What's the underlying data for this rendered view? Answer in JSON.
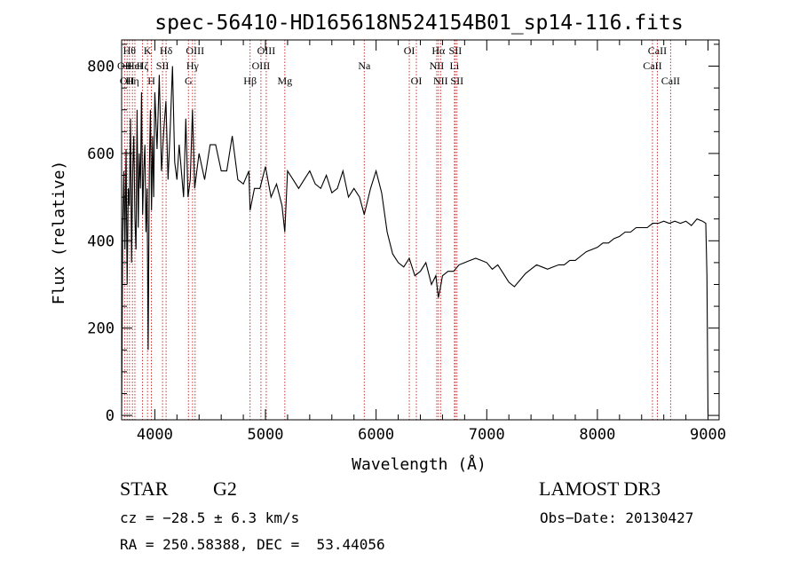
{
  "chart_data": {
    "type": "line",
    "title": "spec-56410-HD165618N524154B01_sp14-116.fits",
    "xlabel": "Wavelength (Å)",
    "ylabel": "Flux (relative)",
    "xlim": [
      3700,
      9100
    ],
    "ylim": [
      -10,
      860
    ],
    "xticks": [
      4000,
      5000,
      6000,
      7000,
      8000,
      9000
    ],
    "yticks": [
      0,
      200,
      400,
      600,
      800
    ],
    "grid": false,
    "series": [
      {
        "color": "#000000",
        "x": [
          3700,
          3710,
          3720,
          3730,
          3740,
          3750,
          3760,
          3770,
          3780,
          3790,
          3800,
          3810,
          3820,
          3830,
          3840,
          3850,
          3860,
          3870,
          3880,
          3890,
          3900,
          3910,
          3920,
          3930,
          3940,
          3950,
          3960,
          3970,
          3980,
          3990,
          4000,
          4020,
          4040,
          4060,
          4080,
          4100,
          4120,
          4140,
          4160,
          4180,
          4200,
          4220,
          4240,
          4260,
          4280,
          4300,
          4320,
          4340,
          4360,
          4380,
          4400,
          4450,
          4500,
          4550,
          4600,
          4650,
          4700,
          4750,
          4800,
          4850,
          4861,
          4900,
          4950,
          5000,
          5050,
          5100,
          5150,
          5175,
          5200,
          5250,
          5300,
          5350,
          5400,
          5450,
          5500,
          5550,
          5600,
          5650,
          5700,
          5750,
          5800,
          5850,
          5893,
          5950,
          6000,
          6050,
          6100,
          6150,
          6200,
          6250,
          6300,
          6350,
          6400,
          6450,
          6500,
          6540,
          6563,
          6580,
          6600,
          6650,
          6700,
          6750,
          6800,
          6850,
          6900,
          6950,
          7000,
          7050,
          7100,
          7150,
          7200,
          7250,
          7300,
          7350,
          7400,
          7450,
          7500,
          7550,
          7600,
          7650,
          7700,
          7750,
          7800,
          7850,
          7900,
          7950,
          8000,
          8050,
          8100,
          8150,
          8200,
          8250,
          8300,
          8350,
          8400,
          8450,
          8500,
          8550,
          8600,
          8650,
          8700,
          8750,
          8800,
          8850,
          8900,
          8950,
          8980,
          8990,
          9000
        ],
        "y": [
          0,
          420,
          560,
          380,
          610,
          300,
          520,
          480,
          680,
          350,
          560,
          640,
          450,
          380,
          700,
          430,
          600,
          520,
          740,
          460,
          560,
          620,
          420,
          520,
          150,
          560,
          700,
          470,
          640,
          500,
          740,
          610,
          780,
          560,
          650,
          720,
          540,
          660,
          800,
          580,
          540,
          620,
          560,
          500,
          680,
          500,
          540,
          700,
          520,
          560,
          600,
          540,
          620,
          620,
          560,
          560,
          640,
          540,
          530,
          560,
          470,
          520,
          520,
          570,
          500,
          530,
          480,
          420,
          560,
          540,
          520,
          540,
          560,
          530,
          520,
          550,
          510,
          520,
          560,
          500,
          520,
          500,
          460,
          520,
          560,
          510,
          420,
          370,
          350,
          340,
          360,
          320,
          330,
          350,
          300,
          320,
          270,
          290,
          320,
          330,
          330,
          345,
          350,
          355,
          360,
          355,
          350,
          335,
          345,
          325,
          305,
          295,
          310,
          325,
          335,
          345,
          340,
          335,
          340,
          345,
          345,
          355,
          355,
          365,
          375,
          380,
          385,
          395,
          395,
          405,
          410,
          420,
          420,
          430,
          430,
          430,
          440,
          440,
          445,
          440,
          445,
          440,
          445,
          435,
          450,
          445,
          440,
          320,
          0
        ]
      }
    ],
    "lines": [
      {
        "wavelength": 3727,
        "label": "OII",
        "row": 1
      },
      {
        "wavelength": 3750,
        "label": "OII",
        "row": 2
      },
      {
        "wavelength": 3771,
        "label": "Hθ",
        "row": 0
      },
      {
        "wavelength": 3798,
        "label": "Hη",
        "row": 2
      },
      {
        "wavelength": 3820,
        "label": "HeI",
        "row": 1
      },
      {
        "wavelength": 3889,
        "label": "Hζ",
        "row": 1
      },
      {
        "wavelength": 3934,
        "label": "K",
        "row": 0
      },
      {
        "wavelength": 3969,
        "label": "H",
        "row": 2
      },
      {
        "wavelength": 4070,
        "label": "SII",
        "row": 1
      },
      {
        "wavelength": 4102,
        "label": "Hδ",
        "row": 0
      },
      {
        "wavelength": 4304,
        "label": "G",
        "row": 2
      },
      {
        "wavelength": 4341,
        "label": "Hγ",
        "row": 1
      },
      {
        "wavelength": 4364,
        "label": "OIII",
        "row": 0
      },
      {
        "wavelength": 4861,
        "label": "Hβ",
        "row": 2
      },
      {
        "wavelength": 4959,
        "label": "OIII",
        "row": 1
      },
      {
        "wavelength": 5007,
        "label": "OIII",
        "row": 0
      },
      {
        "wavelength": 5175,
        "label": "Mg",
        "row": 2
      },
      {
        "wavelength": 5893,
        "label": "Na",
        "row": 1
      },
      {
        "wavelength": 6300,
        "label": "OI",
        "row": 0
      },
      {
        "wavelength": 6364,
        "label": "OI",
        "row": 2
      },
      {
        "wavelength": 6548,
        "label": "NII",
        "row": 1
      },
      {
        "wavelength": 6563,
        "label": "Hα",
        "row": 0
      },
      {
        "wavelength": 6583,
        "label": "NII",
        "row": 2
      },
      {
        "wavelength": 6708,
        "label": "Li",
        "row": 1
      },
      {
        "wavelength": 6716,
        "label": "SII",
        "row": 0
      },
      {
        "wavelength": 6731,
        "label": "SII",
        "row": 2
      },
      {
        "wavelength": 8498,
        "label": "CaII",
        "row": 1
      },
      {
        "wavelength": 8542,
        "label": "CaII",
        "row": 0
      },
      {
        "wavelength": 8662,
        "label": "CaII",
        "row": 2
      }
    ],
    "line_color": "#c83232"
  },
  "info": {
    "object_class": "STAR",
    "subclass": "G2",
    "survey": "LAMOST DR3",
    "cz": "cz = −28.5 ± 6.3 km/s",
    "obs_date": "Obs−Date: 20130427",
    "coords": "RA = 250.58388, DEC =  53.44056"
  }
}
